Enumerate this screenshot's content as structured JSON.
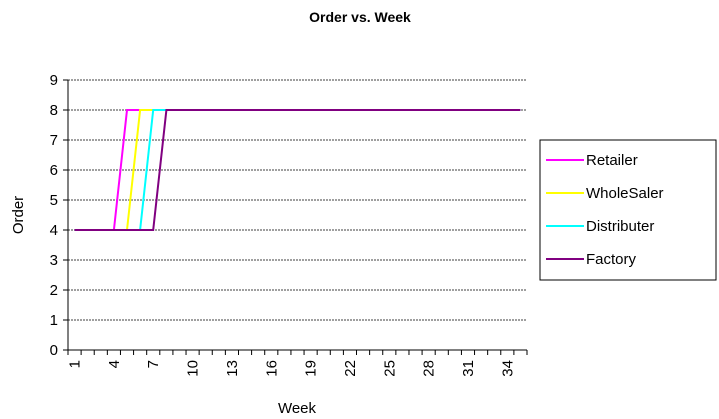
{
  "chart_data": {
    "type": "line",
    "title": "Order vs. Week",
    "x_label": "Week",
    "y_label": "Order",
    "categories": [
      1,
      null,
      null,
      4,
      null,
      null,
      7,
      null,
      null,
      10,
      null,
      null,
      13,
      null,
      null,
      16,
      null,
      null,
      19,
      null,
      null,
      22,
      null,
      null,
      25,
      null,
      null,
      28,
      null,
      null,
      31,
      null,
      null,
      34,
      null
    ],
    "series": [
      {
        "name": "Retailer",
        "color": "#ff00ff",
        "values": [
          4,
          4,
          4,
          4,
          8,
          8,
          8,
          8,
          8,
          8,
          8,
          8,
          8,
          8,
          8,
          8,
          8,
          8,
          8,
          8,
          8,
          8,
          8,
          8,
          8,
          8,
          8,
          8,
          8,
          8,
          8,
          8,
          8,
          8,
          8
        ]
      },
      {
        "name": "WholeSaler",
        "color": "#ffff00",
        "values": [
          4,
          4,
          4,
          4,
          4,
          8,
          8,
          8,
          8,
          8,
          8,
          8,
          8,
          8,
          8,
          8,
          8,
          8,
          8,
          8,
          8,
          8,
          8,
          8,
          8,
          8,
          8,
          8,
          8,
          8,
          8,
          8,
          8,
          8,
          8
        ]
      },
      {
        "name": "Distributer",
        "color": "#00ffff",
        "values": [
          4,
          4,
          4,
          4,
          4,
          4,
          8,
          8,
          8,
          8,
          8,
          8,
          8,
          8,
          8,
          8,
          8,
          8,
          8,
          8,
          8,
          8,
          8,
          8,
          8,
          8,
          8,
          8,
          8,
          8,
          8,
          8,
          8,
          8,
          8
        ]
      },
      {
        "name": "Factory",
        "color": "#800080",
        "values": [
          4,
          4,
          4,
          4,
          4,
          4,
          4,
          8,
          8,
          8,
          8,
          8,
          8,
          8,
          8,
          8,
          8,
          8,
          8,
          8,
          8,
          8,
          8,
          8,
          8,
          8,
          8,
          8,
          8,
          8,
          8,
          8,
          8,
          8,
          8
        ]
      }
    ],
    "ylim": [
      0,
      9
    ],
    "yticks": [
      0,
      1,
      2,
      3,
      4,
      5,
      6,
      7,
      8,
      9
    ],
    "grid": true,
    "legend": "right"
  }
}
